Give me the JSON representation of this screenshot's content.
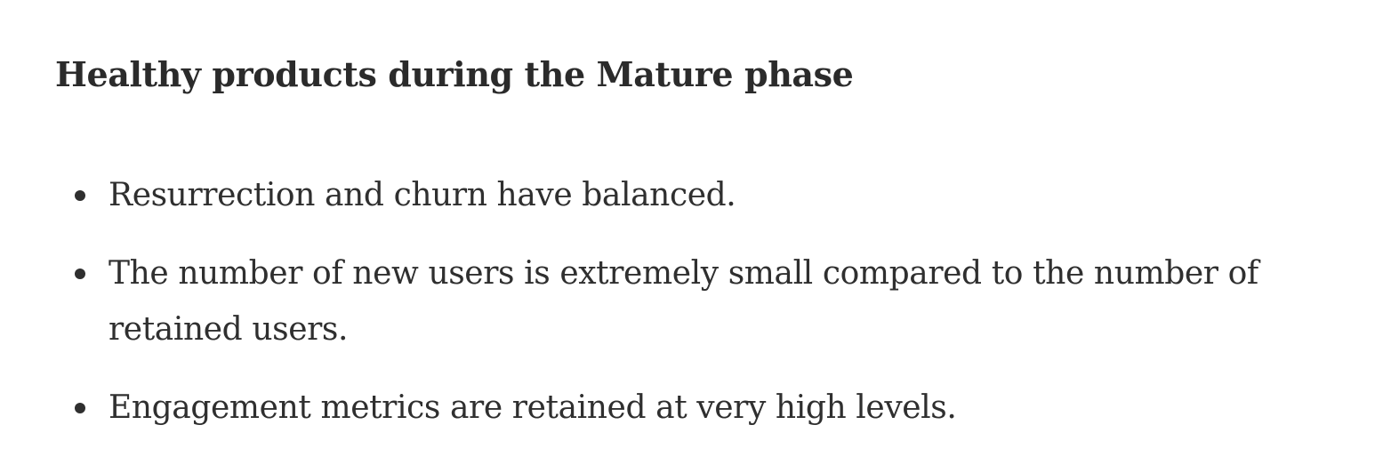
{
  "section": {
    "heading": "Healthy products during the Mature phase",
    "bullets": [
      {
        "text": "Resurrection and churn have balanced."
      },
      {
        "text": "The number of new users is extremely small compared to the number of retained users."
      },
      {
        "text": "Engagement metrics are retained at very high levels."
      }
    ]
  }
}
